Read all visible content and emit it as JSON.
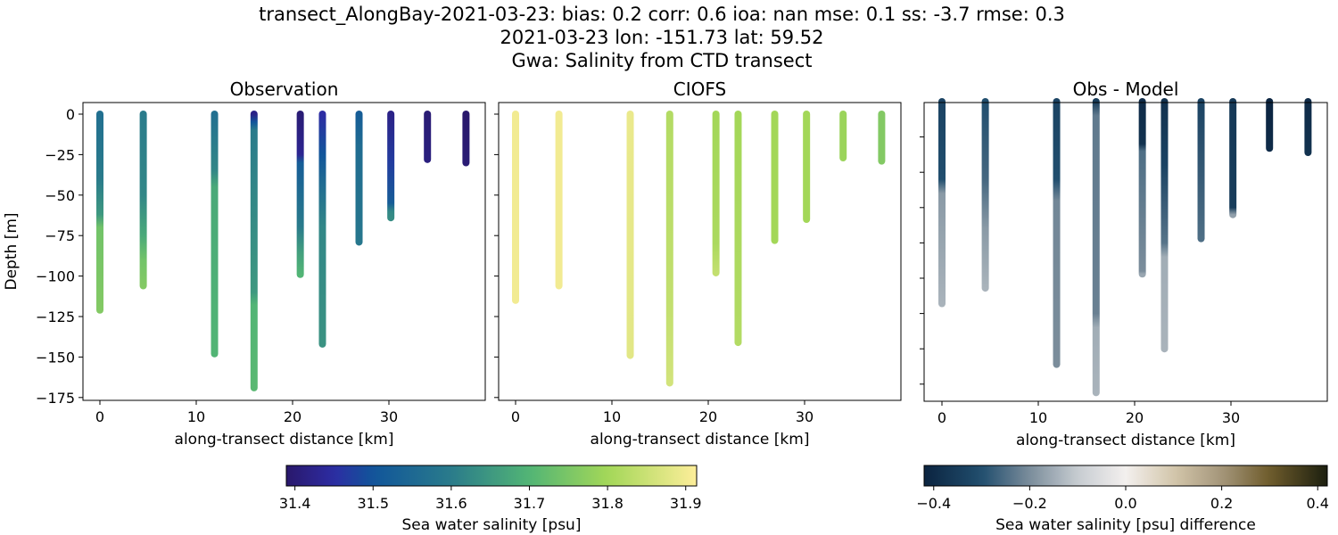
{
  "title_lines": [
    "transect_AlongBay-2021-03-23: bias: 0.2  corr: 0.6  ioa: nan  mse: 0.1  ss: -3.7  rmse: 0.3",
    "2021-03-23 lon: -151.73 lat: 59.52",
    "Gwa: Salinity from CTD transect"
  ],
  "chart_data": [
    {
      "type": "scatter",
      "title": "Observation",
      "xlabel": "along-transect distance [km]",
      "ylabel": "Depth [m]",
      "xlim": [
        -1.8,
        40
      ],
      "ylim": [
        -178,
        7
      ],
      "xticks": [
        "0",
        "10",
        "20",
        "30"
      ],
      "yticks": [
        "0",
        "−25",
        "−50",
        "−75",
        "−100",
        "−125",
        "−150",
        "−175"
      ],
      "colormap": "haline",
      "profiles": [
        {
          "x": 0.0,
          "points": [
            [
              0,
              31.57
            ],
            [
              40,
              31.6
            ],
            [
              62,
              31.65
            ],
            [
              70,
              31.74
            ],
            [
              121,
              31.76
            ]
          ]
        },
        {
          "x": 4.5,
          "points": [
            [
              0,
              31.6
            ],
            [
              50,
              31.62
            ],
            [
              75,
              31.68
            ],
            [
              90,
              31.74
            ],
            [
              106,
              31.76
            ]
          ]
        },
        {
          "x": 11.9,
          "points": [
            [
              0,
              31.57
            ],
            [
              35,
              31.62
            ],
            [
              45,
              31.68
            ],
            [
              148,
              31.7
            ]
          ]
        },
        {
          "x": 16.0,
          "points": [
            [
              0,
              31.42
            ],
            [
              5,
              31.5
            ],
            [
              10,
              31.6
            ],
            [
              110,
              31.65
            ],
            [
              118,
              31.7
            ],
            [
              169,
              31.71
            ]
          ]
        },
        {
          "x": 20.8,
          "points": [
            [
              0,
              31.4
            ],
            [
              25,
              31.43
            ],
            [
              30,
              31.52
            ],
            [
              70,
              31.6
            ],
            [
              85,
              31.66
            ],
            [
              99,
              31.7
            ]
          ]
        },
        {
          "x": 23.1,
          "points": [
            [
              0,
              31.45
            ],
            [
              25,
              31.5
            ],
            [
              40,
              31.55
            ],
            [
              70,
              31.62
            ],
            [
              142,
              31.64
            ]
          ]
        },
        {
          "x": 26.9,
          "points": [
            [
              0,
              31.52
            ],
            [
              20,
              31.56
            ],
            [
              79,
              31.59
            ]
          ]
        },
        {
          "x": 30.2,
          "points": [
            [
              0,
              31.42
            ],
            [
              30,
              31.47
            ],
            [
              55,
              31.52
            ],
            [
              60,
              31.62
            ],
            [
              64,
              31.63
            ]
          ]
        },
        {
          "x": 34.0,
          "points": [
            [
              0,
              31.4
            ],
            [
              28,
              31.41
            ]
          ]
        },
        {
          "x": 38.0,
          "points": [
            [
              0,
              31.39
            ],
            [
              30,
              31.4
            ]
          ]
        }
      ]
    },
    {
      "type": "scatter",
      "title": "CIOFS",
      "xlabel": "along-transect distance [km]",
      "xlim": [
        -1.8,
        40
      ],
      "ylim": [
        -178,
        7
      ],
      "xticks": [
        "0",
        "10",
        "20",
        "30"
      ],
      "colormap": "haline",
      "profiles": [
        {
          "x": 0.0,
          "points": [
            [
              0,
              31.9
            ],
            [
              115,
              31.9
            ]
          ]
        },
        {
          "x": 4.5,
          "points": [
            [
              0,
              31.9
            ],
            [
              106,
              31.9
            ]
          ]
        },
        {
          "x": 11.9,
          "points": [
            [
              0,
              31.89
            ],
            [
              149,
              31.88
            ]
          ]
        },
        {
          "x": 16.0,
          "points": [
            [
              0,
              31.82
            ],
            [
              120,
              31.84
            ],
            [
              166,
              31.86
            ]
          ]
        },
        {
          "x": 20.8,
          "points": [
            [
              0,
              31.8
            ],
            [
              80,
              31.81
            ],
            [
              98,
              31.84
            ]
          ]
        },
        {
          "x": 23.1,
          "points": [
            [
              0,
              31.8
            ],
            [
              141,
              31.82
            ]
          ]
        },
        {
          "x": 26.9,
          "points": [
            [
              0,
              31.8
            ],
            [
              78,
              31.8
            ]
          ]
        },
        {
          "x": 30.2,
          "points": [
            [
              0,
              31.8
            ],
            [
              65,
              31.8
            ]
          ]
        },
        {
          "x": 34.0,
          "points": [
            [
              0,
              31.79
            ],
            [
              27,
              31.79
            ]
          ]
        },
        {
          "x": 38.0,
          "points": [
            [
              0,
              31.76
            ],
            [
              29,
              31.76
            ]
          ]
        }
      ]
    },
    {
      "type": "scatter",
      "title": "Obs - Model",
      "xlabel": "along-transect distance [km]",
      "xlim": [
        -1.8,
        40
      ],
      "ylim": [
        -212,
        0
      ],
      "xticks": [
        "0",
        "10",
        "20",
        "30"
      ],
      "colormap": "diff",
      "profiles": [
        {
          "x": 0.0,
          "points": [
            [
              0,
              -0.33
            ],
            [
              55,
              -0.3
            ],
            [
              65,
              -0.18
            ],
            [
              143,
              -0.14
            ]
          ]
        },
        {
          "x": 4.5,
          "points": [
            [
              0,
              -0.3
            ],
            [
              55,
              -0.26
            ],
            [
              90,
              -0.18
            ],
            [
              132,
              -0.14
            ]
          ]
        },
        {
          "x": 11.9,
          "points": [
            [
              0,
              -0.33
            ],
            [
              55,
              -0.3
            ],
            [
              70,
              -0.21
            ],
            [
              186,
              -0.2
            ]
          ]
        },
        {
          "x": 16.0,
          "points": [
            [
              0,
              -0.35
            ],
            [
              10,
              -0.23
            ],
            [
              150,
              -0.22
            ],
            [
              160,
              -0.15
            ],
            [
              206,
              -0.14
            ]
          ]
        },
        {
          "x": 20.8,
          "points": [
            [
              0,
              -0.4
            ],
            [
              30,
              -0.38
            ],
            [
              35,
              -0.25
            ],
            [
              120,
              -0.2
            ],
            [
              122,
              -0.16
            ]
          ]
        },
        {
          "x": 23.1,
          "points": [
            [
              0,
              -0.38
            ],
            [
              45,
              -0.33
            ],
            [
              100,
              -0.24
            ],
            [
              110,
              -0.15
            ],
            [
              175,
              -0.14
            ]
          ]
        },
        {
          "x": 26.9,
          "points": [
            [
              0,
              -0.33
            ],
            [
              97,
              -0.25
            ]
          ]
        },
        {
          "x": 30.2,
          "points": [
            [
              0,
              -0.36
            ],
            [
              75,
              -0.35
            ],
            [
              80,
              -0.17
            ]
          ]
        },
        {
          "x": 34.0,
          "points": [
            [
              0,
              -0.42
            ],
            [
              33,
              -0.4
            ]
          ]
        },
        {
          "x": 38.0,
          "points": [
            [
              0,
              -0.4
            ],
            [
              36,
              -0.38
            ]
          ]
        }
      ]
    }
  ],
  "colorbars": [
    {
      "label": "Sea water salinity [psu]",
      "range": [
        31.389,
        31.914
      ],
      "ticks": [
        31.4,
        31.5,
        31.6,
        31.7,
        31.8,
        31.9
      ],
      "tick_labels": [
        "31.4",
        "31.5",
        "31.6",
        "31.7",
        "31.8",
        "31.9"
      ],
      "colormap": "haline"
    },
    {
      "label": "Sea water salinity [psu] difference",
      "range": [
        -0.42,
        0.42
      ],
      "ticks": [
        -0.4,
        -0.2,
        0,
        0.2,
        0.4
      ],
      "tick_labels": [
        "−0.4",
        "−0.2",
        "0.0",
        "0.2",
        "0.4"
      ],
      "colormap": "diff"
    }
  ],
  "colormaps": {
    "haline": [
      [
        31.389,
        "#29186b"
      ],
      [
        31.45,
        "#2d2ca3"
      ],
      [
        31.5,
        "#11559a"
      ],
      [
        31.6,
        "#2a7b8b"
      ],
      [
        31.7,
        "#52b575"
      ],
      [
        31.8,
        "#a3d758"
      ],
      [
        31.914,
        "#fdee9a"
      ]
    ],
    "diff": [
      [
        -0.42,
        "#0b2440"
      ],
      [
        -0.3,
        "#214e6e"
      ],
      [
        -0.2,
        "#7b8d9b"
      ],
      [
        -0.1,
        "#c7ccd1"
      ],
      [
        0,
        "#f3f0ee"
      ],
      [
        0.1,
        "#d3c6ab"
      ],
      [
        0.2,
        "#a4967a"
      ],
      [
        0.3,
        "#6e5b2b"
      ],
      [
        0.42,
        "#1c1f0f"
      ]
    ]
  }
}
